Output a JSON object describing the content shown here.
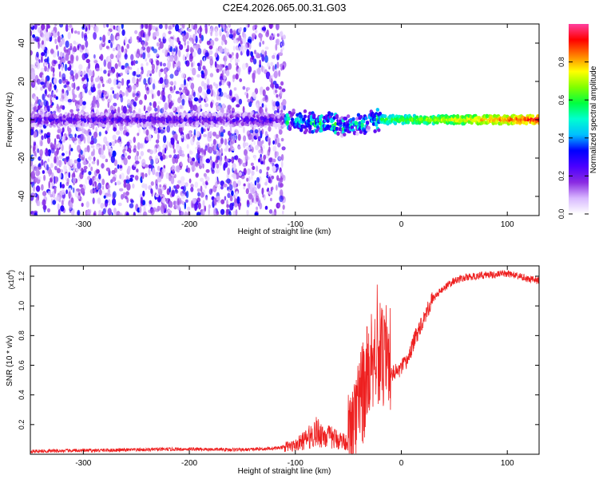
{
  "chart_data": [
    {
      "type": "heatmap",
      "title": "C2E4.2026.065.00.31.G03",
      "xlabel": "Height of straight line (km)",
      "ylabel": "Frequency (Hz)",
      "xlim": [
        -350,
        130
      ],
      "ylim": [
        -50,
        50
      ],
      "xticks": [
        -300,
        -200,
        -100,
        0,
        100
      ],
      "yticks": [
        -40,
        -20,
        0,
        20,
        40
      ],
      "colorbar": {
        "label": "Normalized spectral amplitude",
        "range": [
          0.0,
          1.0
        ],
        "ticks": [
          0.0,
          0.2,
          0.4,
          0.6,
          0.8
        ],
        "colors": [
          "#ffffff",
          "#d8b8ff",
          "#8a2be2",
          "#4b00ff",
          "#0000ff",
          "#00bfff",
          "#00ffd0",
          "#00ff40",
          "#80ff00",
          "#ffff00",
          "#ff8000",
          "#ff0000",
          "#ff40a0"
        ]
      },
      "regions": [
        {
          "name": "noise",
          "x_range": [
            -350,
            -110
          ],
          "freq_range": [
            -50,
            50
          ],
          "amplitude": 0.15
        },
        {
          "name": "signal-track",
          "x_range": [
            -350,
            130
          ],
          "freq_center": 0,
          "peak_amplitude": 0.95
        }
      ]
    },
    {
      "type": "line",
      "xlabel": "Height of straight line (km)",
      "ylabel": "SNR (10 * v/v)",
      "yscale_label": "(x10",
      "yscale_exp": "4",
      "xlim": [
        -350,
        130
      ],
      "ylim": [
        0,
        1.27
      ],
      "xticks": [
        -300,
        -200,
        -100,
        0,
        100
      ],
      "yticks": [
        0.2,
        0.4,
        0.6,
        0.8,
        1.0,
        1.2
      ],
      "color": "#ee2020",
      "series": [
        {
          "name": "SNR",
          "x": [
            -350,
            -300,
            -250,
            -200,
            -150,
            -120,
            -100,
            -90,
            -80,
            -70,
            -60,
            -50,
            -45,
            -40,
            -35,
            -30,
            -25,
            -20,
            -15,
            -10,
            -5,
            0,
            5,
            10,
            15,
            20,
            25,
            30,
            40,
            50,
            60,
            70,
            80,
            90,
            100,
            110,
            120,
            130
          ],
          "y": [
            0.02,
            0.025,
            0.03,
            0.035,
            0.03,
            0.04,
            0.06,
            0.1,
            0.15,
            0.12,
            0.1,
            0.08,
            0.15,
            0.3,
            0.45,
            0.6,
            0.7,
            0.68,
            0.6,
            0.55,
            0.55,
            0.58,
            0.62,
            0.72,
            0.82,
            0.9,
            0.98,
            1.05,
            1.12,
            1.17,
            1.19,
            1.2,
            1.21,
            1.21,
            1.22,
            1.2,
            1.18,
            1.17
          ]
        }
      ]
    }
  ]
}
